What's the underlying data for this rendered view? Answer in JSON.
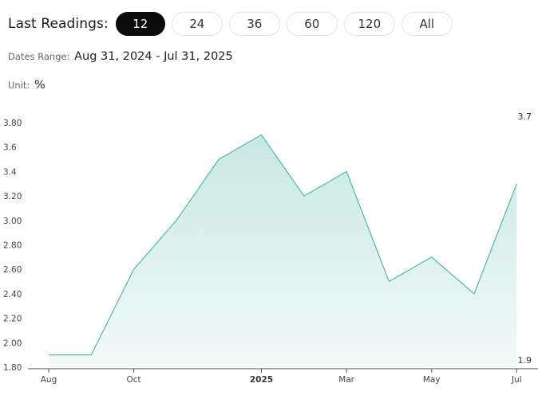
{
  "toolbar": {
    "label": "Last Readings:",
    "options": [
      "12",
      "24",
      "36",
      "60",
      "120",
      "All"
    ],
    "active_index": 0
  },
  "dates_range": {
    "label": "Dates Range:",
    "value": "Aug 31, 2024 - Jul 31, 2025"
  },
  "unit": {
    "label": "Unit:",
    "value": "%"
  },
  "colors": {
    "line": "#3fb4a6",
    "fill_top": "#c9e8e3",
    "fill_bottom": "#f3faf9",
    "active_pill": "#0b0b0b"
  },
  "chart_data": {
    "type": "area",
    "x": [
      "Aug 2024",
      "Sep 2024",
      "Oct 2024",
      "Nov 2024",
      "Dec 2024",
      "Jan 2025",
      "Feb 2025",
      "Mar 2025",
      "Apr 2025",
      "May 2025",
      "Jun 2025",
      "Jul 2025"
    ],
    "series": [
      {
        "values": [
          1.9,
          1.9,
          2.6,
          3.0,
          3.5,
          3.7,
          3.2,
          3.4,
          2.5,
          2.7,
          2.4,
          3.3
        ]
      }
    ],
    "x_ticks": [
      {
        "label": "Aug",
        "index": 0
      },
      {
        "label": "Oct",
        "index": 2
      },
      {
        "label": "2025",
        "index": 5,
        "bold": true
      },
      {
        "label": "Mar",
        "index": 7
      },
      {
        "label": "May",
        "index": 9
      },
      {
        "label": "Jul",
        "index": 11
      }
    ],
    "y_ticks": [
      {
        "value": 1.8,
        "label": "1.80"
      },
      {
        "value": 2.0,
        "label": "2.00"
      },
      {
        "value": 2.2,
        "label": "2.20"
      },
      {
        "value": 2.4,
        "label": "2.40"
      },
      {
        "value": 2.6,
        "label": "2.60"
      },
      {
        "value": 2.8,
        "label": "2.80"
      },
      {
        "value": 3.0,
        "label": "3.00"
      },
      {
        "value": 3.2,
        "label": "3.20"
      },
      {
        "value": 3.4,
        "label": "3.4"
      },
      {
        "value": 3.6,
        "label": "3.6"
      },
      {
        "value": 3.8,
        "label": "3.80"
      }
    ],
    "ylim": [
      1.8,
      3.8
    ],
    "max_label": "3.7",
    "min_label": "1.9",
    "grid": false
  }
}
